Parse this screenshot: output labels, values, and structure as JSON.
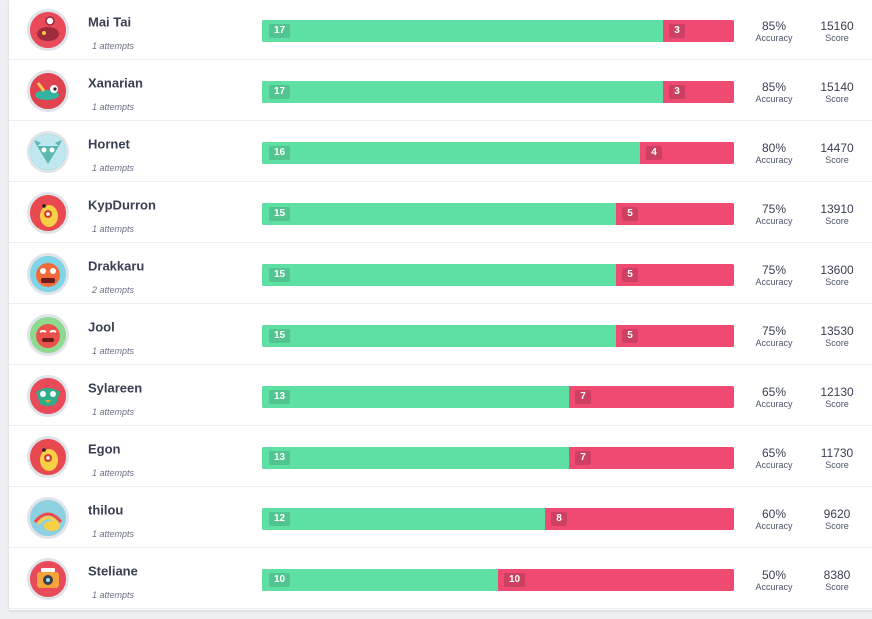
{
  "leaderboard": {
    "accuracy_label": "Accuracy",
    "score_label": "Score",
    "players": [
      {
        "name": "Mai Tai",
        "attempts": "1 attempts",
        "correct": 17,
        "incorrect": 3,
        "accuracy": "85%",
        "score": "15160",
        "avatar": "monster-avatar-red-blob",
        "avatar_color": "#e94a5a"
      },
      {
        "name": "Xanarian",
        "attempts": "1 attempts",
        "correct": 17,
        "incorrect": 3,
        "accuracy": "85%",
        "score": "15140",
        "avatar": "monster-avatar-eye-stalk",
        "avatar_color": "#e0434f"
      },
      {
        "name": "Hornet",
        "attempts": "1 attempts",
        "correct": 16,
        "incorrect": 4,
        "accuracy": "80%",
        "score": "14470",
        "avatar": "monster-avatar-teal-horned",
        "avatar_color": "#5bb8b0"
      },
      {
        "name": "KypDurron",
        "attempts": "1 attempts",
        "correct": 15,
        "incorrect": 5,
        "accuracy": "75%",
        "score": "13910",
        "avatar": "monster-avatar-yellow-pear",
        "avatar_color": "#e8484f"
      },
      {
        "name": "Drakkaru",
        "attempts": "2 attempts",
        "correct": 15,
        "incorrect": 5,
        "accuracy": "75%",
        "score": "13600",
        "avatar": "monster-avatar-red-angry",
        "avatar_color": "#7fd4e6"
      },
      {
        "name": "Jool",
        "attempts": "1 attempts",
        "correct": 15,
        "incorrect": 5,
        "accuracy": "75%",
        "score": "13530",
        "avatar": "monster-avatar-red-sleepy",
        "avatar_color": "#8fd98f"
      },
      {
        "name": "Sylareen",
        "attempts": "1 attempts",
        "correct": 13,
        "incorrect": 7,
        "accuracy": "65%",
        "score": "12130",
        "avatar": "monster-avatar-green-bird",
        "avatar_color": "#e94a5a"
      },
      {
        "name": "Egon",
        "attempts": "1 attempts",
        "correct": 13,
        "incorrect": 7,
        "accuracy": "65%",
        "score": "11730",
        "avatar": "monster-avatar-yellow-pear",
        "avatar_color": "#e8484f"
      },
      {
        "name": "thilou",
        "attempts": "1 attempts",
        "correct": 12,
        "incorrect": 8,
        "accuracy": "60%",
        "score": "9620",
        "avatar": "monster-avatar-rainbow",
        "avatar_color": "#8fd0e0"
      },
      {
        "name": "Steliane",
        "attempts": "1 attempts",
        "correct": 10,
        "incorrect": 10,
        "accuracy": "50%",
        "score": "8380",
        "avatar": "monster-avatar-camera",
        "avatar_color": "#e94a5a"
      }
    ]
  }
}
